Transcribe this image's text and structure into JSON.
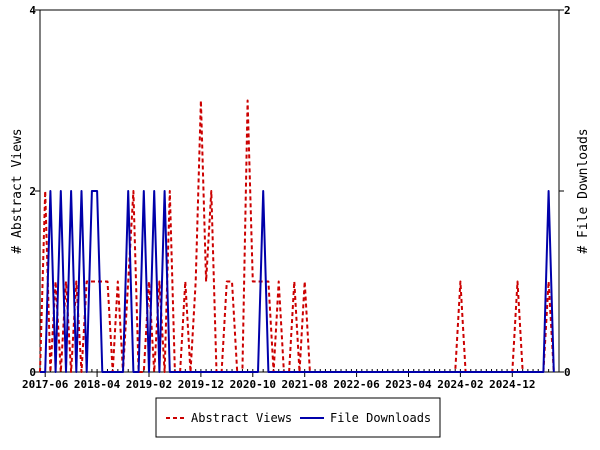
{
  "chart_data": {
    "type": "line",
    "y_left_label": "# Abstract Views",
    "y_right_label": "# File Downloads",
    "y_left_lim": [
      0,
      4
    ],
    "y_right_lim": [
      0,
      2
    ],
    "y_left_ticks": [
      "0",
      "2",
      "4"
    ],
    "y_right_ticks": [
      "0",
      "1",
      "2"
    ],
    "x_range": [
      "2017-05",
      "2025-09"
    ],
    "x_ticks": [
      "2017-06",
      "2018-04",
      "2019-02",
      "2019-12",
      "2020-10",
      "2021-08",
      "2022-06",
      "2023-04",
      "2024-02",
      "2024-12"
    ],
    "grid": false,
    "legend_position": "bottom",
    "series": [
      {
        "name": "Abstract Views",
        "axis": "left",
        "color": "#cc0000",
        "style": "dashed",
        "values": [
          [
            "2017-05",
            0
          ],
          [
            "2017-06",
            2
          ],
          [
            "2017-07",
            0
          ],
          [
            "2017-08",
            1
          ],
          [
            "2017-09",
            0
          ],
          [
            "2017-10",
            1
          ],
          [
            "2017-11",
            0
          ],
          [
            "2017-12",
            1
          ],
          [
            "2018-01",
            0
          ],
          [
            "2018-02",
            1
          ],
          [
            "2018-03",
            1
          ],
          [
            "2018-04",
            1
          ],
          [
            "2018-05",
            1
          ],
          [
            "2018-06",
            1
          ],
          [
            "2018-07",
            0
          ],
          [
            "2018-08",
            1
          ],
          [
            "2018-09",
            0
          ],
          [
            "2018-10",
            1
          ],
          [
            "2018-11",
            2
          ],
          [
            "2018-12",
            0
          ],
          [
            "2019-01",
            0
          ],
          [
            "2019-02",
            1
          ],
          [
            "2019-03",
            0
          ],
          [
            "2019-04",
            1
          ],
          [
            "2019-05",
            0
          ],
          [
            "2019-06",
            2
          ],
          [
            "2019-07",
            0
          ],
          [
            "2019-08",
            0
          ],
          [
            "2019-09",
            1
          ],
          [
            "2019-10",
            0
          ],
          [
            "2019-11",
            1
          ],
          [
            "2019-12",
            3
          ],
          [
            "2020-01",
            1
          ],
          [
            "2020-02",
            2
          ],
          [
            "2020-03",
            0
          ],
          [
            "2020-04",
            0
          ],
          [
            "2020-05",
            1
          ],
          [
            "2020-06",
            1
          ],
          [
            "2020-07",
            0
          ],
          [
            "2020-08",
            0
          ],
          [
            "2020-09",
            3
          ],
          [
            "2020-10",
            1
          ],
          [
            "2020-11",
            1
          ],
          [
            "2020-12",
            1
          ],
          [
            "2021-01",
            1
          ],
          [
            "2021-02",
            0
          ],
          [
            "2021-03",
            1
          ],
          [
            "2021-04",
            0
          ],
          [
            "2021-05",
            0
          ],
          [
            "2021-06",
            1
          ],
          [
            "2021-07",
            0
          ],
          [
            "2021-08",
            1
          ],
          [
            "2021-09",
            0
          ],
          [
            "2024-01",
            0
          ],
          [
            "2024-02",
            1
          ],
          [
            "2024-03",
            0
          ],
          [
            "2024-12",
            0
          ],
          [
            "2025-01",
            1
          ],
          [
            "2025-02",
            0
          ],
          [
            "2025-06",
            0
          ],
          [
            "2025-07",
            1
          ],
          [
            "2025-08",
            0
          ]
        ]
      },
      {
        "name": "File Downloads",
        "axis": "right",
        "color": "#0000aa",
        "style": "solid",
        "values": [
          [
            "2017-05",
            0
          ],
          [
            "2017-06",
            0
          ],
          [
            "2017-07",
            1
          ],
          [
            "2017-08",
            0
          ],
          [
            "2017-09",
            1
          ],
          [
            "2017-10",
            0
          ],
          [
            "2017-11",
            1
          ],
          [
            "2017-12",
            0
          ],
          [
            "2018-01",
            1
          ],
          [
            "2018-02",
            0
          ],
          [
            "2018-03",
            1
          ],
          [
            "2018-04",
            1
          ],
          [
            "2018-05",
            0
          ],
          [
            "2018-06",
            0
          ],
          [
            "2018-07",
            0
          ],
          [
            "2018-08",
            0
          ],
          [
            "2018-09",
            0
          ],
          [
            "2018-10",
            1
          ],
          [
            "2018-11",
            0
          ],
          [
            "2018-12",
            0
          ],
          [
            "2019-01",
            1
          ],
          [
            "2019-02",
            0
          ],
          [
            "2019-03",
            1
          ],
          [
            "2019-04",
            0
          ],
          [
            "2019-05",
            1
          ],
          [
            "2019-06",
            0
          ],
          [
            "2020-11",
            0
          ],
          [
            "2020-12",
            1
          ],
          [
            "2021-01",
            0
          ],
          [
            "2025-06",
            0
          ],
          [
            "2025-07",
            1
          ],
          [
            "2025-08",
            0
          ]
        ]
      }
    ]
  }
}
